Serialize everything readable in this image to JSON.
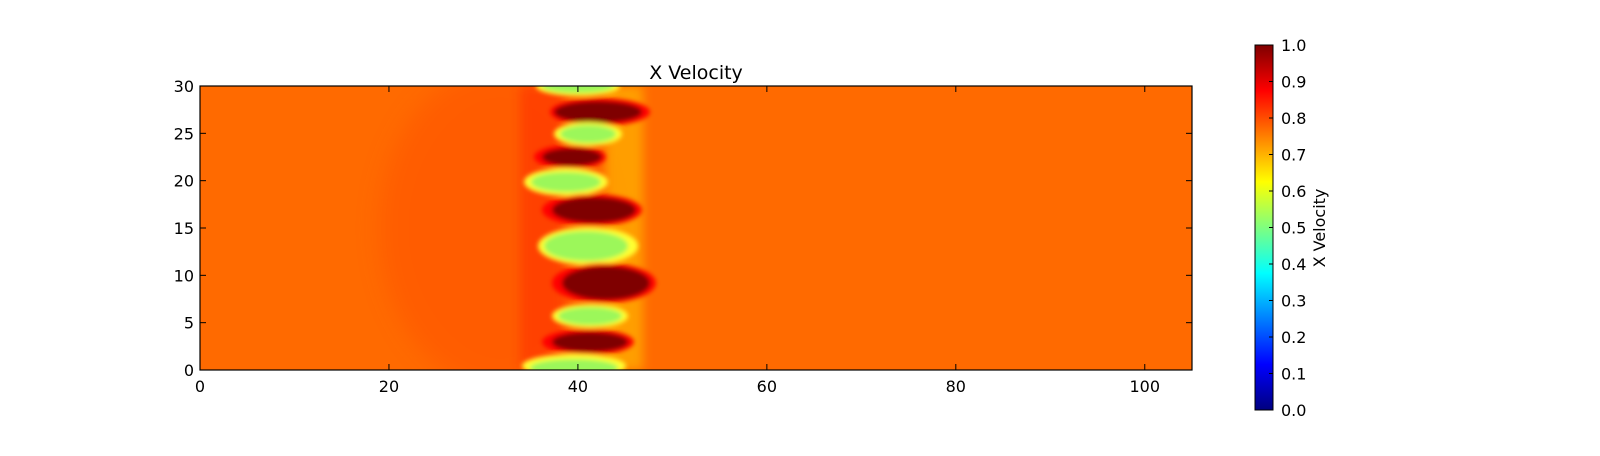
{
  "chart_data": {
    "type": "heatmap",
    "title": "X Velocity",
    "xlabel": "",
    "ylabel": "",
    "xlim": [
      0,
      105
    ],
    "ylim": [
      0,
      30
    ],
    "x_ticks": [
      0,
      20,
      40,
      60,
      80,
      100
    ],
    "y_ticks": [
      0,
      5,
      10,
      15,
      20,
      25,
      30
    ],
    "colormap": "jet",
    "background_value": 0.78,
    "colorbar": {
      "label": "X Velocity",
      "range": [
        0.0,
        1.0
      ],
      "ticks": [
        "0.0",
        "0.1",
        "0.2",
        "0.3",
        "0.4",
        "0.5",
        "0.6",
        "0.7",
        "0.8",
        "0.9",
        "1.0"
      ]
    },
    "features": [
      {
        "x": 41,
        "y": 27.2,
        "value": 1.0
      },
      {
        "x": 41.5,
        "y": 25.0,
        "value": 0.6
      },
      {
        "x": 39,
        "y": 22.5,
        "value": 1.0
      },
      {
        "x": 38.5,
        "y": 19.8,
        "value": 0.55
      },
      {
        "x": 42,
        "y": 17.0,
        "value": 1.0
      },
      {
        "x": 41,
        "y": 13.5,
        "value": 0.55
      },
      {
        "x": 42.5,
        "y": 9.5,
        "value": 1.0
      },
      {
        "x": 42,
        "y": 6.0,
        "value": 0.6
      },
      {
        "x": 41,
        "y": 2.8,
        "value": 1.0
      },
      {
        "x": 40,
        "y": 0.6,
        "value": 0.55
      },
      {
        "x": 41,
        "y": 29.8,
        "value": 0.6
      }
    ]
  }
}
